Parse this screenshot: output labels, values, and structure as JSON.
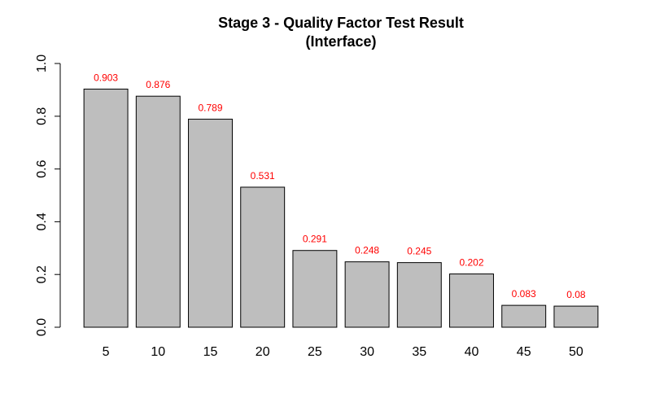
{
  "chart_data": {
    "type": "bar",
    "title": "Stage 3 - Quality Factor Test Result",
    "subtitle": "(Interface)",
    "xlabel": "",
    "ylabel": "",
    "categories": [
      "5",
      "10",
      "15",
      "20",
      "25",
      "30",
      "35",
      "40",
      "45",
      "50"
    ],
    "values": [
      0.903,
      0.876,
      0.789,
      0.531,
      0.291,
      0.248,
      0.245,
      0.202,
      0.083,
      0.08
    ],
    "data_labels": [
      "0.903",
      "0.876",
      "0.789",
      "0.531",
      "0.291",
      "0.248",
      "0.245",
      "0.202",
      "0.083",
      "0.08"
    ],
    "ylim": [
      0,
      1
    ],
    "yticks": [
      "0.0",
      "0.2",
      "0.4",
      "0.6",
      "0.8",
      "1.0"
    ],
    "grid": false,
    "legend": "none",
    "colors": {
      "bar_fill": "#bebebe",
      "bar_stroke": "#000000",
      "data_label": "#ff0000",
      "axis": "#000000"
    }
  }
}
